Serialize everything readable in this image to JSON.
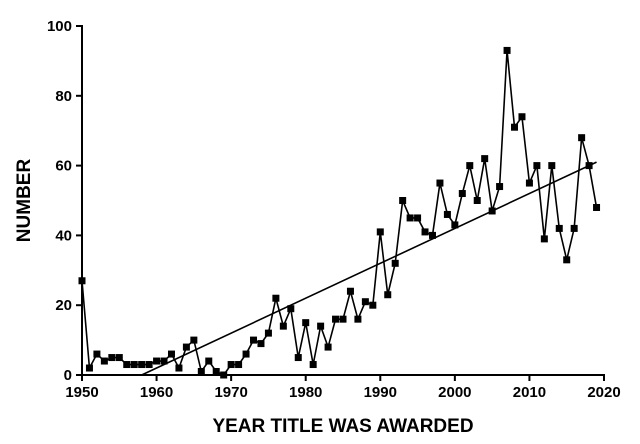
{
  "chart_data": {
    "type": "line",
    "title": "",
    "xlabel": "YEAR TITLE WAS AWARDED",
    "ylabel": "NUMBER",
    "xlim": [
      1950,
      2020
    ],
    "ylim": [
      0,
      100
    ],
    "x_ticks": [
      1950,
      1960,
      1970,
      1980,
      1990,
      2000,
      2010,
      2020
    ],
    "y_ticks": [
      0,
      20,
      40,
      60,
      80,
      100
    ],
    "grid": false,
    "legend": "none",
    "series": [
      {
        "x": [
          1950,
          1951,
          1952,
          1953,
          1954,
          1955,
          1956,
          1957,
          1958,
          1959,
          1960,
          1961,
          1962,
          1963,
          1964,
          1965,
          1966,
          1967,
          1968,
          1969,
          1970,
          1971,
          1972,
          1973,
          1974,
          1975,
          1976,
          1977,
          1978,
          1979,
          1980,
          1981,
          1982,
          1983,
          1984,
          1985,
          1986,
          1987,
          1988,
          1989,
          1990,
          1991,
          1992,
          1993,
          1994,
          1995,
          1996,
          1997,
          1998,
          1999,
          2000,
          2001,
          2002,
          2003,
          2004,
          2005,
          2006,
          2007,
          2008,
          2009,
          2010,
          2011,
          2012,
          2013,
          2014,
          2015,
          2016,
          2017,
          2018,
          2019
        ],
        "values": [
          27,
          2,
          6,
          4,
          5,
          5,
          3,
          3,
          3,
          3,
          4,
          4,
          6,
          2,
          8,
          10,
          1,
          4,
          1,
          0,
          3,
          3,
          6,
          10,
          9,
          12,
          22,
          14,
          19,
          5,
          15,
          3,
          14,
          8,
          16,
          16,
          24,
          16,
          21,
          20,
          41,
          23,
          32,
          50,
          45,
          45,
          41,
          40,
          55,
          46,
          43,
          52,
          60,
          50,
          62,
          47,
          54,
          93,
          71,
          74,
          55,
          60,
          39,
          60,
          42,
          33,
          42,
          68,
          60,
          48
        ]
      }
    ],
    "trendline": {
      "x": [
        1958,
        2019
      ],
      "y": [
        0,
        61
      ]
    }
  }
}
